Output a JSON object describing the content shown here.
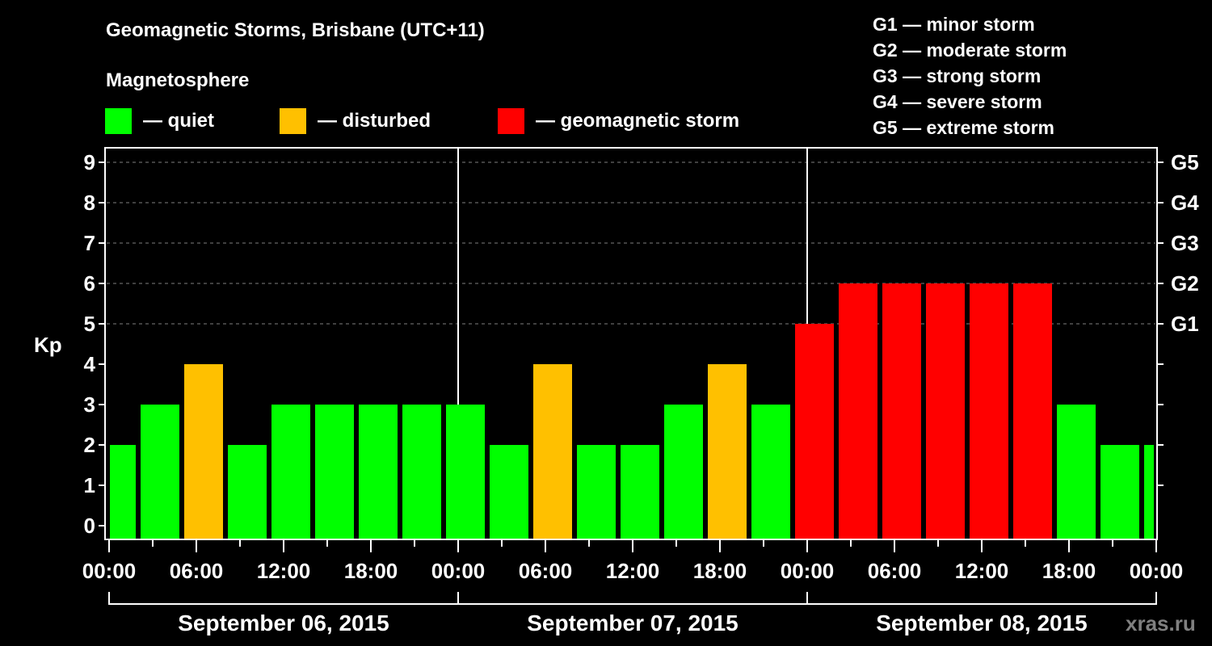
{
  "title": "Geomagnetic Storms, Brisbane (UTC+11)",
  "subtitle": "Magnetosphere",
  "legend": [
    {
      "label": "— quiet",
      "color": "#00ff00"
    },
    {
      "label": "— disturbed",
      "color": "#ffc000"
    },
    {
      "label": "— geomagnetic storm",
      "color": "#ff0000"
    }
  ],
  "g_scale_legend": [
    "G1 — minor storm",
    "G2 — moderate storm",
    "G3 — strong storm",
    "G4 — severe storm",
    "G5 — extreme storm"
  ],
  "watermark": "xras.ru",
  "colors": {
    "quiet": "#00ff00",
    "disturbed": "#ffc000",
    "storm": "#ff0000",
    "background": "#000000",
    "grid": "#808080"
  },
  "chart_data": {
    "type": "bar",
    "title": "Geomagnetic Storms, Brisbane (UTC+11)",
    "xlabel": "",
    "ylabel": "Kp",
    "ylim": [
      0,
      9
    ],
    "yticks": [
      0,
      1,
      2,
      3,
      4,
      5,
      6,
      7,
      8,
      9
    ],
    "right_axis_labels": [
      {
        "kp": 5,
        "label": "G1"
      },
      {
        "kp": 6,
        "label": "G2"
      },
      {
        "kp": 7,
        "label": "G3"
      },
      {
        "kp": 8,
        "label": "G4"
      },
      {
        "kp": 9,
        "label": "G5"
      }
    ],
    "grid": "dashed horizontal at Kp 5-9",
    "x_tick_labels": [
      "00:00",
      "06:00",
      "12:00",
      "18:00",
      "00:00",
      "06:00",
      "12:00",
      "18:00",
      "00:00",
      "06:00",
      "12:00",
      "18:00",
      "00:00"
    ],
    "days": [
      "September 06, 2015",
      "September 07, 2015",
      "September 08, 2015"
    ],
    "bar_interval_hours": 3,
    "categories": [
      "Sep06 00-02",
      "Sep06 02-05",
      "Sep06 05-08",
      "Sep06 08-11",
      "Sep06 11-14",
      "Sep06 14-17",
      "Sep06 17-20",
      "Sep06 20-23",
      "Sep06 23-Sep07 02",
      "Sep07 02-05",
      "Sep07 05-08",
      "Sep07 08-11",
      "Sep07 11-14",
      "Sep07 14-17",
      "Sep07 17-20",
      "Sep07 20-23",
      "Sep07 23-Sep08 02",
      "Sep08 02-05",
      "Sep08 05-08",
      "Sep08 08-11",
      "Sep08 11-14",
      "Sep08 14-17",
      "Sep08 17-20",
      "Sep08 20-23",
      "Sep08 23-24"
    ],
    "values": [
      2,
      3,
      4,
      2,
      3,
      3,
      3,
      3,
      3,
      2,
      4,
      2,
      2,
      3,
      4,
      3,
      5,
      6,
      6,
      6,
      6,
      6,
      3,
      2,
      2
    ],
    "status": [
      "quiet",
      "quiet",
      "disturbed",
      "quiet",
      "quiet",
      "quiet",
      "quiet",
      "quiet",
      "quiet",
      "quiet",
      "disturbed",
      "quiet",
      "quiet",
      "quiet",
      "disturbed",
      "quiet",
      "storm",
      "storm",
      "storm",
      "storm",
      "storm",
      "storm",
      "quiet",
      "quiet",
      "quiet"
    ],
    "legend": [
      "quiet",
      "disturbed",
      "geomagnetic storm"
    ]
  }
}
